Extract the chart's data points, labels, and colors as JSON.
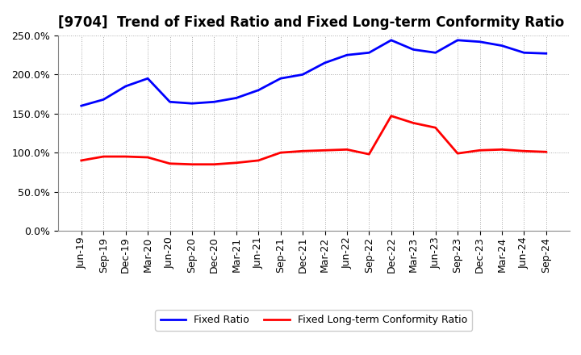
{
  "title": "[9704]  Trend of Fixed Ratio and Fixed Long-term Conformity Ratio",
  "x_labels": [
    "Jun-19",
    "Sep-19",
    "Dec-19",
    "Mar-20",
    "Jun-20",
    "Sep-20",
    "Dec-20",
    "Mar-21",
    "Jun-21",
    "Sep-21",
    "Dec-21",
    "Mar-22",
    "Jun-22",
    "Sep-22",
    "Dec-22",
    "Mar-23",
    "Jun-23",
    "Sep-23",
    "Dec-23",
    "Mar-24",
    "Jun-24",
    "Sep-24"
  ],
  "fixed_ratio": [
    160,
    168,
    185,
    195,
    165,
    163,
    165,
    170,
    180,
    195,
    200,
    215,
    225,
    228,
    244,
    232,
    228,
    244,
    242,
    237,
    228,
    227
  ],
  "fixed_lt_ratio": [
    90,
    95,
    95,
    94,
    86,
    85,
    85,
    87,
    90,
    100,
    102,
    103,
    104,
    98,
    147,
    138,
    132,
    99,
    103,
    104,
    102,
    101
  ],
  "fixed_ratio_color": "#0000FF",
  "fixed_lt_ratio_color": "#FF0000",
  "ylim_min": 0,
  "ylim_max": 250,
  "yticks": [
    0,
    50,
    100,
    150,
    200,
    250
  ],
  "background_color": "#FFFFFF",
  "plot_bg_color": "#FFFFFF",
  "grid_color": "#AAAAAA",
  "legend_fixed_ratio": "Fixed Ratio",
  "legend_fixed_lt_ratio": "Fixed Long-term Conformity Ratio",
  "title_fontsize": 12,
  "tick_fontsize": 9,
  "legend_fontsize": 9,
  "line_width": 2.0
}
